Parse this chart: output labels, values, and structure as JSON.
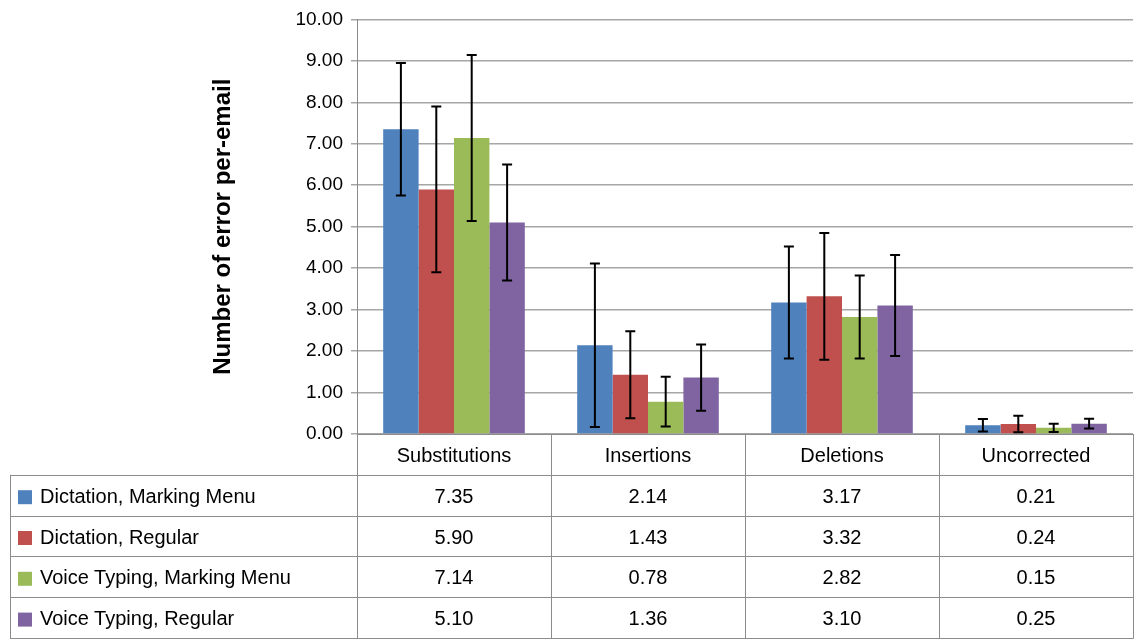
{
  "chart_data": {
    "type": "bar",
    "ylabel": "Number of error per-email",
    "categories": [
      "Substitutions",
      "Insertions",
      "Deletions",
      "Uncorrected"
    ],
    "series": [
      {
        "name": "Dictation, Marking Menu",
        "color": "#4f81bd",
        "values": [
          7.35,
          2.14,
          3.17,
          0.21
        ],
        "errors": [
          1.6,
          1.97,
          1.35,
          0.15
        ],
        "value_labels": [
          "7.35",
          "2.14",
          "3.17",
          "0.21"
        ]
      },
      {
        "name": "Dictation, Regular",
        "color": "#c0504d",
        "values": [
          5.9,
          1.43,
          3.32,
          0.24
        ],
        "errors": [
          2.0,
          1.05,
          1.53,
          0.2
        ],
        "value_labels": [
          "5.90",
          "1.43",
          "3.32",
          "0.24"
        ]
      },
      {
        "name": "Voice Typing, Marking Menu",
        "color": "#9bbb59",
        "values": [
          7.14,
          0.78,
          2.82,
          0.15
        ],
        "errors": [
          2.0,
          0.6,
          1.0,
          0.1
        ],
        "value_labels": [
          "7.14",
          "0.78",
          "2.82",
          "0.15"
        ]
      },
      {
        "name": "Voice Typing, Regular",
        "color": "#8064a2",
        "values": [
          5.1,
          1.36,
          3.1,
          0.25
        ],
        "errors": [
          1.4,
          0.8,
          1.22,
          0.12
        ],
        "value_labels": [
          "5.10",
          "1.36",
          "3.10",
          "0.25"
        ]
      }
    ],
    "ylim": [
      0,
      10
    ],
    "yticks": [
      {
        "value": 0,
        "label": "0.00"
      },
      {
        "value": 1,
        "label": "1.00"
      },
      {
        "value": 2,
        "label": "2.00"
      },
      {
        "value": 3,
        "label": "3.00"
      },
      {
        "value": 4,
        "label": "4.00"
      },
      {
        "value": 5,
        "label": "5.00"
      },
      {
        "value": 6,
        "label": "6.00"
      },
      {
        "value": 7,
        "label": "7.00"
      },
      {
        "value": 8,
        "label": "8.00"
      },
      {
        "value": 9,
        "label": "9.00"
      },
      {
        "value": 10,
        "label": "10.00"
      }
    ],
    "grid": "y",
    "legend": "bottom"
  }
}
